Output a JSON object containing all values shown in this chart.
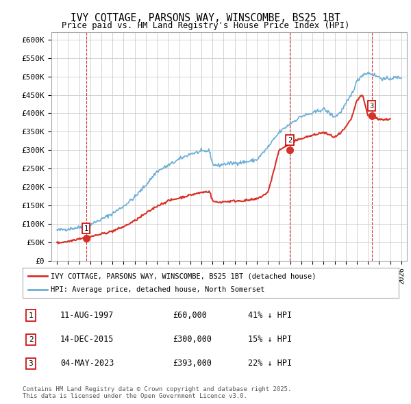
{
  "title": "IVY COTTAGE, PARSONS WAY, WINSCOMBE, BS25 1BT",
  "subtitle": "Price paid vs. HM Land Registry's House Price Index (HPI)",
  "ylim": [
    0,
    620000
  ],
  "yticks": [
    0,
    50000,
    100000,
    150000,
    200000,
    250000,
    300000,
    350000,
    400000,
    450000,
    500000,
    550000,
    600000
  ],
  "ytick_labels": [
    "£0",
    "£50K",
    "£100K",
    "£150K",
    "£200K",
    "£250K",
    "£300K",
    "£350K",
    "£400K",
    "£450K",
    "£500K",
    "£550K",
    "£600K"
  ],
  "sale_year_nums": [
    1997.625,
    2015.958,
    2023.333
  ],
  "sale_prices": [
    60000,
    300000,
    393000
  ],
  "sale_labels": [
    "1",
    "2",
    "3"
  ],
  "hpi_color": "#6baed6",
  "price_color": "#d73027",
  "legend_label_price": "IVY COTTAGE, PARSONS WAY, WINSCOMBE, BS25 1BT (detached house)",
  "legend_label_hpi": "HPI: Average price, detached house, North Somerset",
  "table_entries": [
    {
      "num": "1",
      "date": "11-AUG-1997",
      "price": "£60,000",
      "hpi": "41% ↓ HPI"
    },
    {
      "num": "2",
      "date": "14-DEC-2015",
      "price": "£300,000",
      "hpi": "15% ↓ HPI"
    },
    {
      "num": "3",
      "date": "04-MAY-2023",
      "price": "£393,000",
      "hpi": "22% ↓ HPI"
    }
  ],
  "footnote": "Contains HM Land Registry data © Crown copyright and database right 2025.\nThis data is licensed under the Open Government Licence v3.0.",
  "background_color": "#ffffff",
  "grid_color": "#cccccc",
  "vline_color": "#cc0000",
  "num_box_color": "#cc0000",
  "hpi_anchors_year": [
    1995,
    1996,
    1997,
    1998,
    1999,
    2000,
    2001,
    2002,
    2003,
    2004,
    2005,
    2006,
    2007,
    2008,
    2008.75,
    2009,
    2009.5,
    2010,
    2011,
    2012,
    2013,
    2014,
    2015,
    2016,
    2017,
    2018,
    2019,
    2020,
    2020.5,
    2021,
    2021.5,
    2022,
    2022.5,
    2023,
    2023.5,
    2024,
    2024.5,
    2025,
    2026
  ],
  "hpi_anchors_val": [
    82000,
    86000,
    90000,
    98000,
    112000,
    128000,
    148000,
    172000,
    205000,
    242000,
    258000,
    275000,
    290000,
    296000,
    298000,
    262000,
    258000,
    262000,
    265000,
    268000,
    274000,
    308000,
    348000,
    372000,
    392000,
    400000,
    412000,
    390000,
    402000,
    425000,
    450000,
    487000,
    505000,
    510000,
    505000,
    498000,
    492000,
    495000,
    498000
  ],
  "price_anchors_year": [
    1995,
    1996,
    1997,
    1998,
    1999,
    2000,
    2001,
    2002,
    2003,
    2004,
    2005,
    2006,
    2007,
    2008,
    2008.75,
    2009,
    2009.5,
    2010,
    2011,
    2012,
    2013,
    2014,
    2015,
    2016,
    2017,
    2018,
    2019,
    2020,
    2020.5,
    2021,
    2021.5,
    2022,
    2022.5,
    2023,
    2023.5,
    2024,
    2024.5,
    2025
  ],
  "price_anchors_val": [
    48000,
    52000,
    60000,
    65000,
    72000,
    80000,
    92000,
    108000,
    128000,
    148000,
    162000,
    170000,
    178000,
    185000,
    188000,
    162000,
    158000,
    160000,
    162000,
    163000,
    167000,
    185000,
    300000,
    318000,
    332000,
    340000,
    348000,
    335000,
    345000,
    362000,
    385000,
    435000,
    450000,
    393000,
    388000,
    385000,
    382000,
    385000
  ]
}
